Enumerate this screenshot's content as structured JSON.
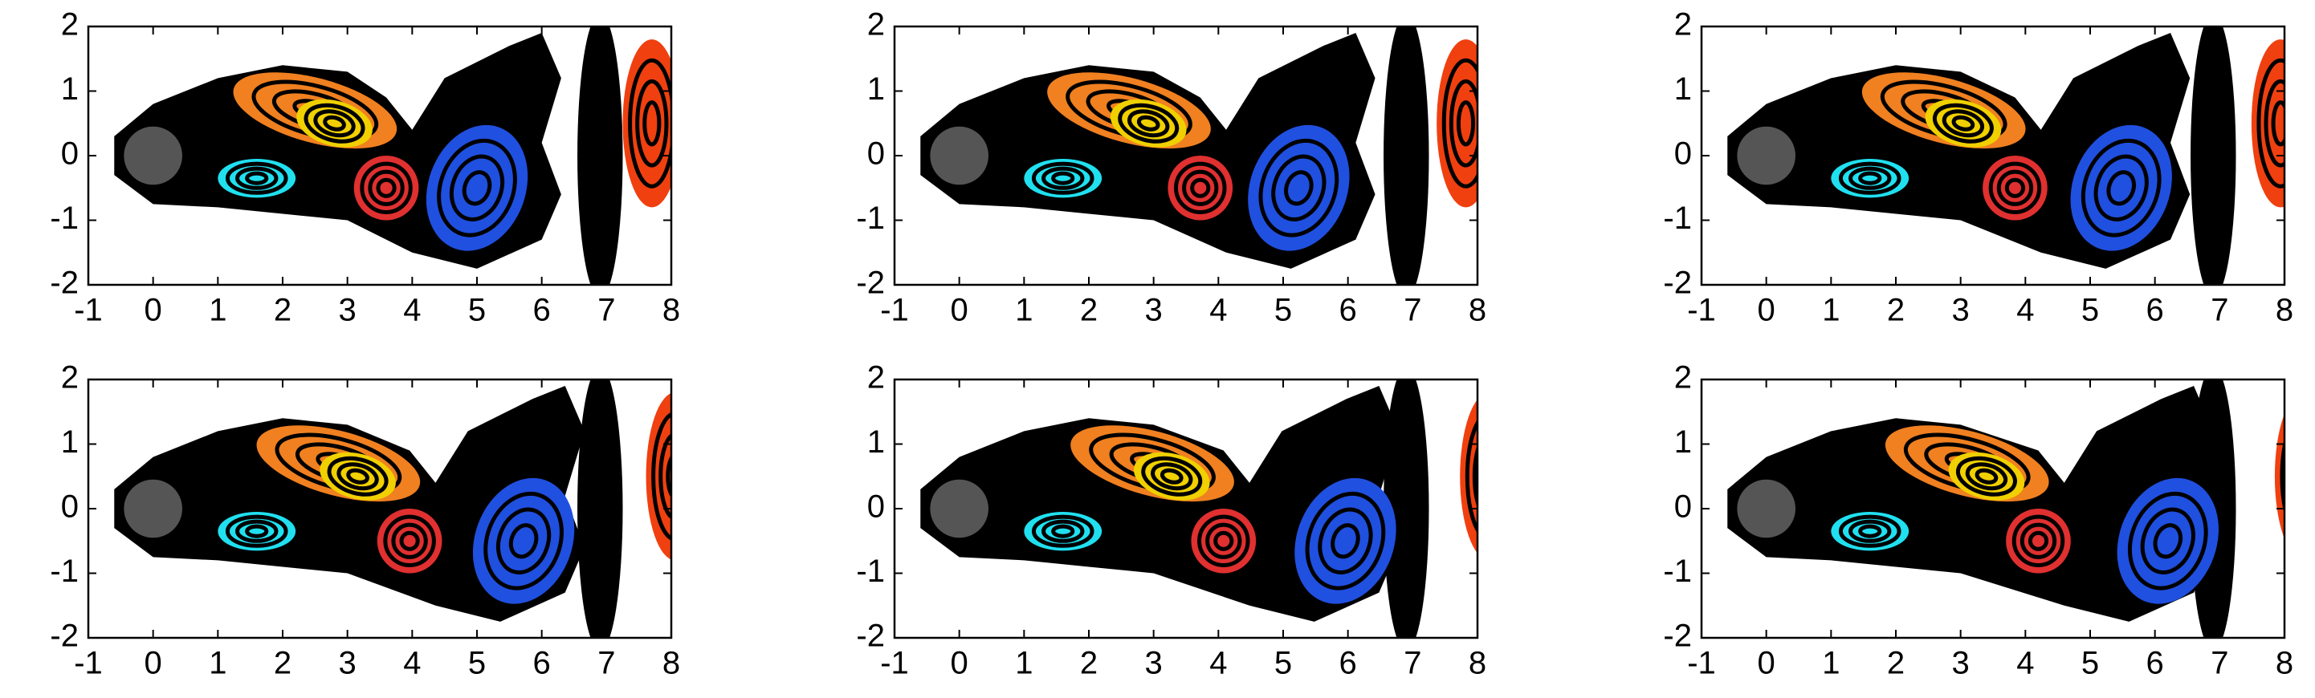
{
  "chart_data": [
    {
      "type": "image",
      "xlim": [
        -1,
        8
      ],
      "ylim": [
        -2,
        2
      ],
      "xticks": [
        -1,
        0,
        1,
        2,
        3,
        4,
        5,
        6,
        7,
        8
      ],
      "yticks": [
        -2,
        -1,
        0,
        1,
        2
      ]
    },
    {
      "type": "image",
      "xlim": [
        -1,
        8
      ],
      "ylim": [
        -2,
        2
      ],
      "xticks": [
        -1,
        0,
        1,
        2,
        3,
        4,
        5,
        6,
        7,
        8
      ],
      "yticks": [
        -2,
        -1,
        0,
        1,
        2
      ]
    },
    {
      "type": "image",
      "xlim": [
        -1,
        8
      ],
      "ylim": [
        -2,
        2
      ],
      "xticks": [
        -1,
        0,
        1,
        2,
        3,
        4,
        5,
        6,
        7,
        8
      ],
      "yticks": [
        -2,
        -1,
        0,
        1,
        2
      ]
    },
    {
      "type": "image",
      "xlim": [
        -1,
        8
      ],
      "ylim": [
        -2,
        2
      ],
      "xticks": [
        -1,
        0,
        1,
        2,
        3,
        4,
        5,
        6,
        7,
        8
      ],
      "yticks": [
        -2,
        -1,
        0,
        1,
        2
      ]
    },
    {
      "type": "image",
      "xlim": [
        -1,
        8
      ],
      "ylim": [
        -2,
        2
      ],
      "xticks": [
        -1,
        0,
        1,
        2,
        3,
        4,
        5,
        6,
        7,
        8
      ],
      "yticks": [
        -2,
        -1,
        0,
        1,
        2
      ]
    },
    {
      "type": "image",
      "xlim": [
        -1,
        8
      ],
      "ylim": [
        -2,
        2
      ],
      "xticks": [
        -1,
        0,
        1,
        2,
        3,
        4,
        5,
        6,
        7,
        8
      ],
      "yticks": [
        -2,
        -1,
        0,
        1,
        2
      ]
    }
  ]
}
